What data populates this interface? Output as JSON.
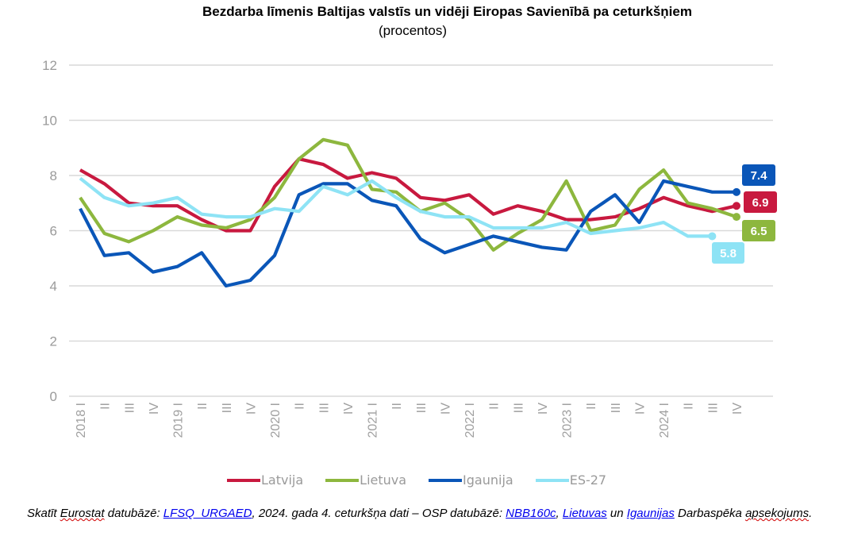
{
  "chart_data": {
    "type": "line",
    "title": "Bezdarba līmenis Baltijas valstīs un vidēji Eiropas Savienībā pa ceturkšņiem",
    "subtitle": "(procentos)",
    "xlabel": "",
    "ylabel": "",
    "ylim": [
      0,
      12
    ],
    "yticks": [
      "0",
      "2",
      "4",
      "6",
      "8",
      "10",
      "12"
    ],
    "grid": true,
    "legend_position": "bottom",
    "categories": [
      "2018 I",
      "II",
      "III",
      "IV",
      "2019 I",
      "II",
      "III",
      "IV",
      "2020 I",
      "II",
      "III",
      "IV",
      "2021 I",
      "II",
      "III",
      "IV",
      "2022 I",
      "II",
      "III",
      "IV",
      "2023 I",
      "II",
      "III",
      "IV",
      "2024 I",
      "II",
      "III",
      "IV"
    ],
    "series": [
      {
        "name": "Latvija",
        "color": "#c8193f",
        "end_label": "6.9",
        "values": [
          8.2,
          7.7,
          7.0,
          6.9,
          6.9,
          6.4,
          6.0,
          6.0,
          7.6,
          8.6,
          8.4,
          7.9,
          8.1,
          7.9,
          7.2,
          7.1,
          7.3,
          6.6,
          6.9,
          6.7,
          6.4,
          6.4,
          6.5,
          6.8,
          7.2,
          6.9,
          6.7,
          6.9
        ]
      },
      {
        "name": "Lietuva",
        "color": "#8db73e",
        "end_label": "6.5",
        "values": [
          7.2,
          5.9,
          5.6,
          6.0,
          6.5,
          6.2,
          6.1,
          6.4,
          7.2,
          8.6,
          9.3,
          9.1,
          7.5,
          7.4,
          6.7,
          7.0,
          6.4,
          5.3,
          5.9,
          6.4,
          7.8,
          6.0,
          6.2,
          7.5,
          8.2,
          7.0,
          6.8,
          6.5
        ]
      },
      {
        "name": "Igaunija",
        "color": "#0a56b8",
        "end_label": "7.4",
        "values": [
          6.8,
          5.1,
          5.2,
          4.5,
          4.7,
          5.2,
          4.0,
          4.2,
          5.1,
          7.3,
          7.7,
          7.7,
          7.1,
          6.9,
          5.7,
          5.2,
          5.5,
          5.8,
          5.6,
          5.4,
          5.3,
          6.7,
          7.3,
          6.3,
          7.8,
          7.6,
          7.4,
          7.4
        ]
      },
      {
        "name": "ES-27",
        "color": "#8ee3f5",
        "end_label": "5.8",
        "values": [
          7.9,
          7.2,
          6.9,
          7.0,
          7.2,
          6.6,
          6.5,
          6.5,
          6.8,
          6.7,
          7.6,
          7.3,
          7.8,
          7.2,
          6.7,
          6.5,
          6.5,
          6.1,
          6.1,
          6.1,
          6.3,
          5.9,
          6.0,
          6.1,
          6.3,
          5.8,
          5.8,
          null
        ]
      }
    ]
  },
  "footnote": {
    "part1": "Skatīt ",
    "eurostat": "Eurostat",
    "part2": " datubāzē: ",
    "link1": "LFSQ_URGAED",
    "part3": ", 2024. gada 4. ceturkšņa dati – OSP datubāzē: ",
    "link2": "NBB160c",
    "part4": ", ",
    "link3": "Lietuvas",
    "part5": " un ",
    "link4": "Igaunijas",
    "part6": " Darbaspēka ",
    "apsekojums": "apsekojums",
    "part7": "."
  }
}
